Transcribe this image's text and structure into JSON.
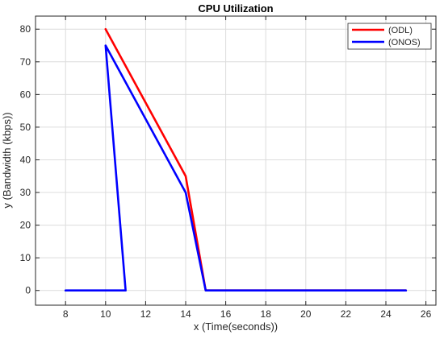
{
  "chart_data": {
    "type": "line",
    "title": "CPU Utilization",
    "xlabel": "x (Time(seconds))",
    "ylabel": "y (Bandwidth (kbps))",
    "xlim": [
      6.5,
      26.5
    ],
    "ylim": [
      -4.5,
      84
    ],
    "xticks": [
      8,
      10,
      12,
      14,
      16,
      18,
      20,
      22,
      24,
      26
    ],
    "yticks": [
      0,
      10,
      20,
      30,
      40,
      50,
      60,
      70,
      80
    ],
    "grid": true,
    "legend_position": "top-right",
    "series": [
      {
        "name": "(ODL)",
        "color": "#ff0000",
        "points": [
          [
            10,
            80
          ],
          [
            14,
            35
          ],
          [
            15,
            0
          ],
          [
            25,
            0
          ]
        ]
      },
      {
        "name": "(ONOS)",
        "color": "#0000ff",
        "points": [
          [
            8,
            0
          ],
          [
            11,
            0
          ],
          [
            10,
            75
          ],
          [
            14,
            30
          ],
          [
            15,
            0
          ],
          [
            25,
            0
          ]
        ]
      }
    ]
  }
}
